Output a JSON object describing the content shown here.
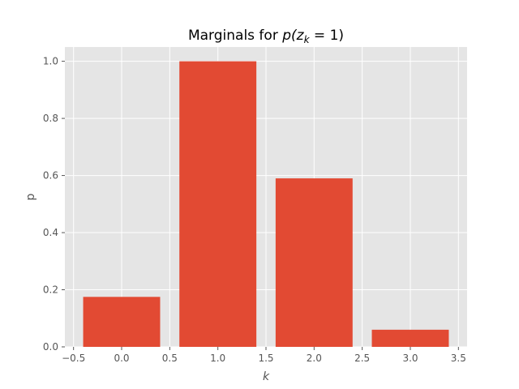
{
  "chart_data": {
    "type": "bar",
    "title_prefix": "Marginals for ",
    "title_math": "p(z",
    "title_sub": "k",
    "title_suffix": " = 1)",
    "xlabel": "k",
    "ylabel": "p",
    "categories": [
      0,
      1,
      2,
      3
    ],
    "values": [
      0.175,
      1.0,
      0.59,
      0.06
    ],
    "bar_width": 0.8,
    "xlim": [
      -0.59,
      3.59
    ],
    "ylim": [
      0,
      1.05
    ],
    "x_ticks": [
      -0.5,
      0.0,
      0.5,
      1.0,
      1.5,
      2.0,
      2.5,
      3.0,
      3.5
    ],
    "x_tick_labels": [
      "−0.5",
      "0.0",
      "0.5",
      "1.0",
      "1.5",
      "2.0",
      "2.5",
      "3.0",
      "3.5"
    ],
    "y_ticks": [
      0.0,
      0.2,
      0.4,
      0.6,
      0.8,
      1.0
    ],
    "y_tick_labels": [
      "0.0",
      "0.2",
      "0.4",
      "0.6",
      "0.8",
      "1.0"
    ],
    "grid": true,
    "colors": {
      "bar": "#E24A33",
      "plot_background": "#E5E5E5",
      "grid": "#FFFFFF"
    }
  }
}
